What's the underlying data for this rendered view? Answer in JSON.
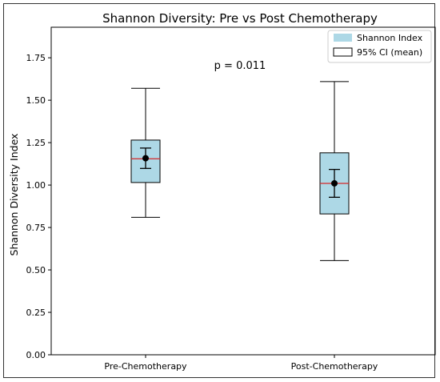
{
  "chart_data": {
    "type": "box",
    "title": "Shannon Diversity: Pre vs Post Chemotherapy",
    "xlabel": "",
    "ylabel": "Shannon Diversity Index",
    "ylim": [
      0,
      1.93
    ],
    "yticks": [
      0.0,
      0.25,
      0.5,
      0.75,
      1.0,
      1.25,
      1.5,
      1.75
    ],
    "ytick_labels": [
      "0.00",
      "0.25",
      "0.50",
      "0.75",
      "1.00",
      "1.25",
      "1.50",
      "1.75"
    ],
    "categories": [
      "Pre-Chemotherapy",
      "Post-Chemotherapy"
    ],
    "boxes": [
      {
        "category": "Pre-Chemotherapy",
        "whisker_low": 0.81,
        "q1": 1.015,
        "median": 1.155,
        "q3": 1.265,
        "whisker_high": 1.57,
        "mean": 1.158,
        "ci_low": 1.098,
        "ci_high": 1.218
      },
      {
        "category": "Post-Chemotherapy",
        "whisker_low": 0.555,
        "q1": 0.83,
        "median": 1.01,
        "q3": 1.19,
        "whisker_high": 1.61,
        "mean": 1.01,
        "ci_low": 0.928,
        "ci_high": 1.092
      }
    ],
    "annotation": "p = 0.011",
    "legend": {
      "position": "top-right",
      "entries": [
        "Shannon Index",
        "95% CI (mean)"
      ]
    },
    "grid": false,
    "colors": {
      "box_fill": "#add8e6",
      "median": "#d62728",
      "axis": "#000000"
    }
  }
}
